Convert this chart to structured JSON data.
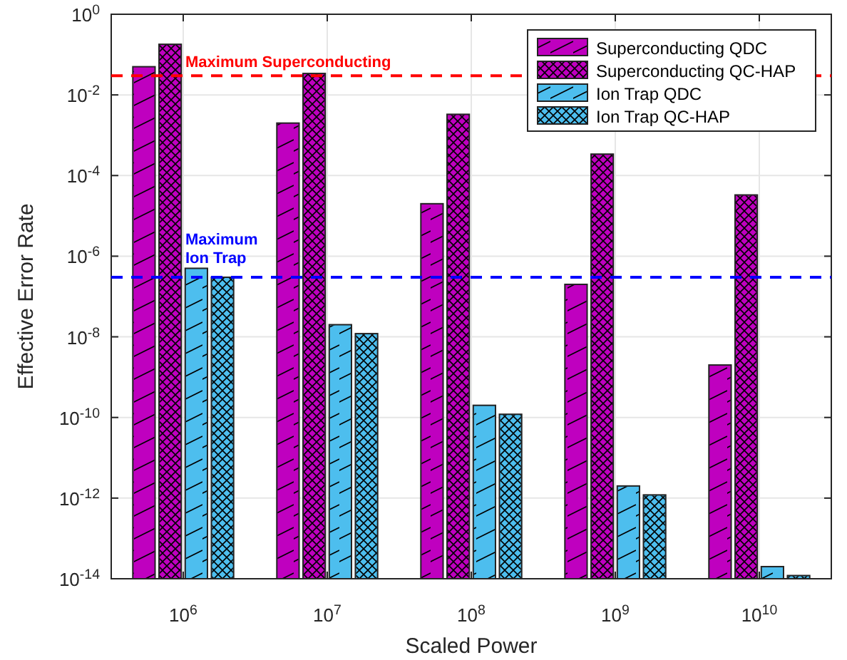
{
  "chart_data": {
    "type": "bar",
    "xlabel": "Scaled Power",
    "ylabel": "Effective Error Rate",
    "categories": [
      "10$^{6}$",
      "10$^{7}$",
      "10$^{8}$",
      "10$^{9}$",
      "10$^{10}$"
    ],
    "series": [
      {
        "name": "Superconducting QDC",
        "color": "#bf00bf",
        "values": [
          0.05,
          0.002,
          2e-05,
          2e-07,
          2e-09
        ]
      },
      {
        "name": "Superconducting QC-HAP",
        "color": "#bf00bf",
        "values": [
          0.18,
          0.034,
          0.0033,
          0.00034,
          3.3e-05
        ]
      },
      {
        "name": "Ion Trap QDC",
        "color": "#4dbeee",
        "values": [
          5e-07,
          2e-08,
          2e-10,
          2e-12,
          2e-14
        ]
      },
      {
        "name": "Ion Trap QC-HAP",
        "color": "#4dbeee",
        "values": [
          3e-07,
          1.2e-08,
          1.2e-10,
          1.2e-12,
          1.2e-14
        ]
      }
    ],
    "log": true,
    "ylim": [
      1e-14,
      1
    ],
    "yticks": [
      {
        "value": 1e-14,
        "label": "10$^{-14}$"
      },
      {
        "value": 1e-12,
        "label": "10$^{-12}$"
      },
      {
        "value": 1e-10,
        "label": "10$^{-10}$"
      },
      {
        "value": 1e-08,
        "label": "10$^{-8}$"
      },
      {
        "value": 1e-06,
        "label": "10$^{-6}$"
      },
      {
        "value": 0.0001,
        "label": "10$^{-4}$"
      },
      {
        "value": 0.01,
        "label": "10$^{-2}$"
      },
      {
        "value": 1,
        "label": "10$^{0}$"
      }
    ],
    "grid": true,
    "legend": "top right",
    "ref_lines": [
      {
        "axis": "y",
        "value": 0.03,
        "label": "Maximum Superconducting",
        "color": "#ff0000",
        "line_style": "dashed"
      },
      {
        "axis": "y",
        "value": 3e-07,
        "label": "Maximum Ion Trap",
        "color": "#0000ff",
        "line_style": "dashed"
      }
    ]
  }
}
